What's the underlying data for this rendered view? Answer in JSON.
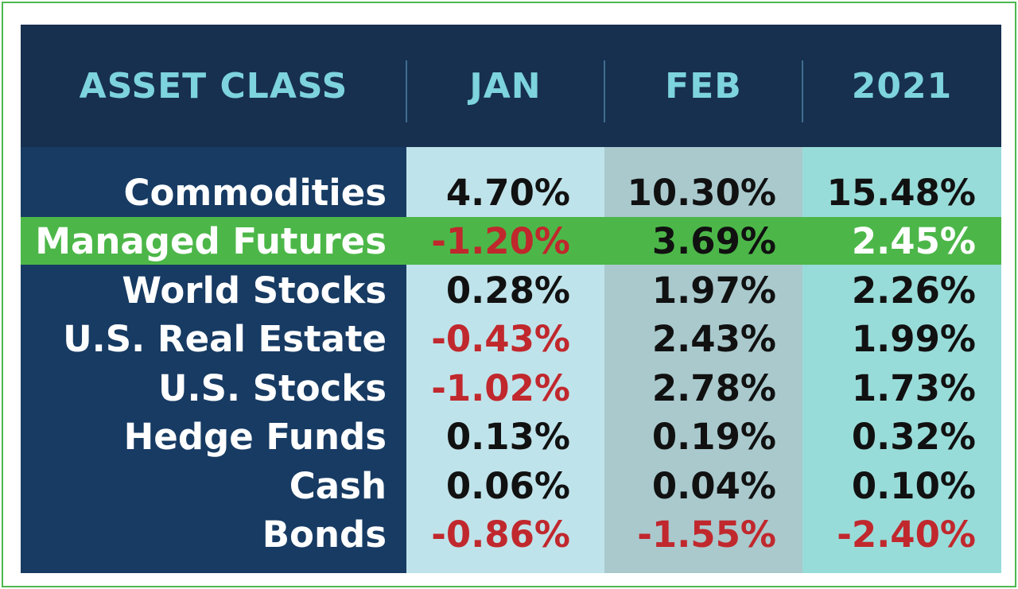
{
  "colors": {
    "header_bg": "#17304f",
    "header_text": "#7dd3de",
    "label_col_bg": "#173b63",
    "jan_col_bg": "#bfe3ea",
    "feb_col_bg": "#a9c9cd",
    "ytd_col_bg": "#98dcd9",
    "highlight_row": "#4cb748",
    "negative": "#c0282d",
    "positive": "#111111",
    "frame_border": "#4db84e"
  },
  "chart_data": {
    "type": "table",
    "columns": [
      "ASSET CLASS",
      "JAN",
      "FEB",
      "2021"
    ],
    "highlighted_row": "Managed Futures",
    "rows": [
      {
        "label": "Commodities",
        "jan": "4.70%",
        "feb": "10.30%",
        "ytd": "15.48%"
      },
      {
        "label": "Managed Futures",
        "jan": "-1.20%",
        "feb": "3.69%",
        "ytd": "2.45%"
      },
      {
        "label": "World Stocks",
        "jan": "0.28%",
        "feb": "1.97%",
        "ytd": "2.26%"
      },
      {
        "label": "U.S. Real Estate",
        "jan": "-0.43%",
        "feb": "2.43%",
        "ytd": "1.99%"
      },
      {
        "label": "U.S. Stocks",
        "jan": "-1.02%",
        "feb": "2.78%",
        "ytd": "1.73%"
      },
      {
        "label": "Hedge Funds",
        "jan": "0.13%",
        "feb": "0.19%",
        "ytd": "0.32%"
      },
      {
        "label": "Cash",
        "jan": "0.06%",
        "feb": "0.04%",
        "ytd": "0.10%"
      },
      {
        "label": "Bonds",
        "jan": "-0.86%",
        "feb": "-1.55%",
        "ytd": "-2.40%"
      }
    ]
  }
}
